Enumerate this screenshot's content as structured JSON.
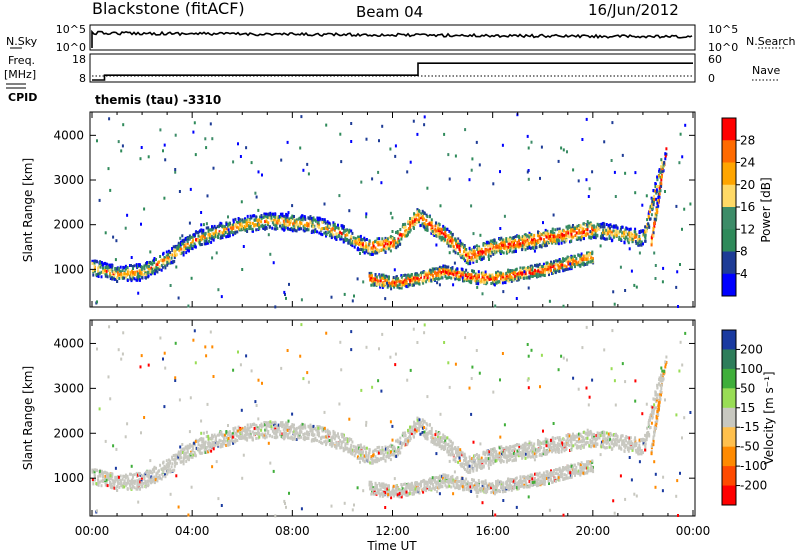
{
  "header": {
    "station": "Blackstone (fitACF)",
    "beam": "Beam 04",
    "date": "16/Jun/2012"
  },
  "top_panel": {
    "left_label": "N.Sky",
    "left_ticks": [
      "10^5",
      "10^0"
    ],
    "right_ticks": [
      "10^5",
      "10^0"
    ],
    "right_label": "N.Search"
  },
  "freq_panel": {
    "left_label_line1": "Freq.",
    "left_label_line2": "[MHz]",
    "left_ticks": [
      "18",
      "8"
    ],
    "right_ticks": [
      "60",
      "0"
    ],
    "right_label": "Nave",
    "cpid_label": "CPID",
    "program": "themis (tau) -3310"
  },
  "power_panel": {
    "ylabel": "Slant Range [km]",
    "colorbar_label": "Power [dB]",
    "colorbar_ticks": [
      "28",
      "24",
      "20",
      "16",
      "12",
      "8",
      "4"
    ],
    "colorbar_colors": [
      "#ff0000",
      "#ff6a00",
      "#ffa500",
      "#ffd966",
      "#3d8c68",
      "#2f8a5a",
      "#1e3c96",
      "#0000ff"
    ]
  },
  "velocity_panel": {
    "ylabel": "Slant Range [km]",
    "colorbar_label": "Velocity [m s⁻¹]",
    "colorbar_ticks": [
      "200",
      "100",
      "50",
      "15",
      "-15",
      "-50",
      "-100",
      "-200"
    ],
    "colorbar_colors": [
      "#1a3aa0",
      "#2e7d5a",
      "#3fae3a",
      "#99dd55",
      "#c8c8c0",
      "#ffc04d",
      "#ff8a00",
      "#ff4a00",
      "#ff0000"
    ]
  },
  "x_axis": {
    "xlabel": "Time UT",
    "ticks": [
      "00:00",
      "04:00",
      "08:00",
      "12:00",
      "16:00",
      "20:00",
      "00:00"
    ]
  },
  "chart_data": [
    {
      "type": "line",
      "title": "N.Sky / N.Search",
      "y_scale": "log",
      "ylim": [
        "10^0",
        "10^5"
      ],
      "x_range": [
        "00:00",
        "24:00"
      ],
      "description_values": "noise level near 10^4 throughout the day, slowly decreasing after 12:00"
    },
    {
      "type": "line",
      "title": "Freq. [MHz] / Nave",
      "ylim_freq": [
        8,
        18
      ],
      "ylim_nave": [
        0,
        60
      ],
      "series": [
        {
          "name": "Freq.",
          "x": [
            "00:00",
            "00:30",
            "13:00",
            "13:01",
            "24:00"
          ],
          "values": [
            8,
            10,
            10,
            15,
            15
          ]
        },
        {
          "name": "Nave",
          "x": [
            "00:00",
            "24:00"
          ],
          "values": [
            5,
            5
          ]
        }
      ]
    },
    {
      "type": "heatmap",
      "title": "Power [dB]",
      "x_range": [
        "00:00",
        "24:00"
      ],
      "ylim": [
        180,
        4500
      ],
      "yticks": [
        1000,
        2000,
        3000,
        4000
      ],
      "color_range": [
        0,
        30
      ],
      "bands": [
        {
          "label": "main echo band",
          "x_hours": [
            0,
            1,
            2,
            3,
            4,
            5,
            6,
            7,
            8,
            9,
            10,
            11,
            12,
            13,
            14,
            15,
            16,
            17,
            18,
            19,
            20,
            21,
            22,
            22.8
          ],
          "range_km": [
            1050,
            900,
            950,
            1250,
            1650,
            1850,
            2000,
            2100,
            2050,
            2000,
            1800,
            1500,
            1600,
            2200,
            1800,
            1300,
            1500,
            1600,
            1700,
            1800,
            1900,
            1800,
            1700,
            3500
          ]
        },
        {
          "label": "lower echo band",
          "x_hours": [
            11,
            12,
            13,
            14,
            15,
            16,
            17,
            18,
            19,
            20
          ],
          "range_km": [
            800,
            700,
            800,
            950,
            850,
            800,
            900,
            1000,
            1150,
            1300
          ]
        }
      ]
    },
    {
      "type": "heatmap",
      "title": "Velocity [m s⁻¹]",
      "x_range": [
        "00:00",
        "24:00"
      ],
      "ylim": [
        180,
        4500
      ],
      "yticks": [
        1000,
        2000,
        3000,
        4000
      ],
      "color_range": [
        -200,
        200
      ]
    }
  ]
}
